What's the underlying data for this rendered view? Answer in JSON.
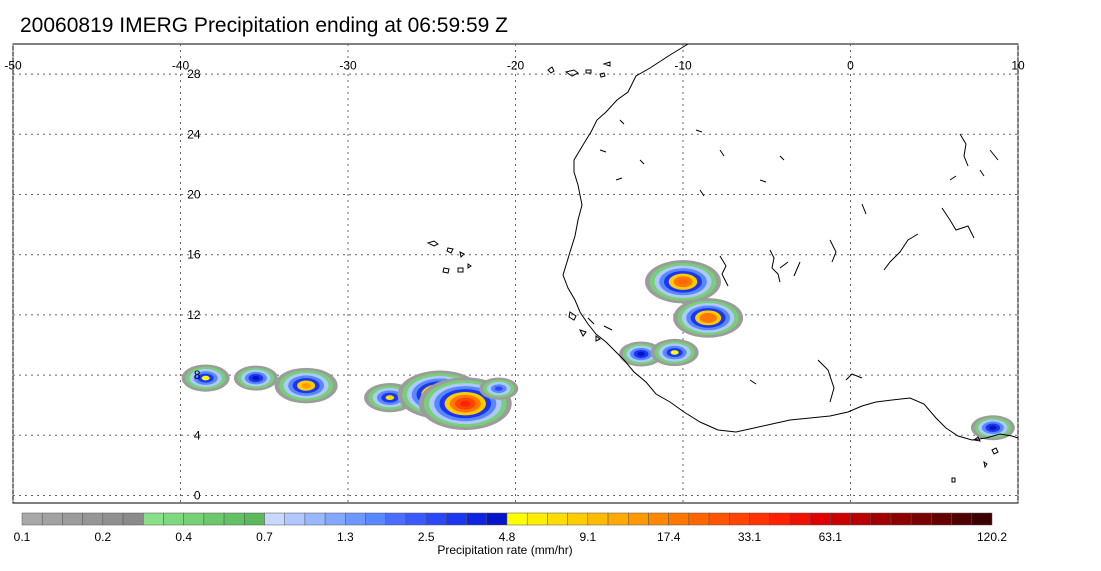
{
  "title": "20060819 IMERG Precipitation ending at 06:59:59 Z",
  "map": {
    "lon_range": [
      -50,
      10
    ],
    "lat_range": [
      -0.5,
      30
    ],
    "lon_ticks": [
      "-50",
      "-40",
      "-30",
      "-20",
      "-10",
      "0",
      "10"
    ],
    "lat_ticks": [
      "0",
      "4",
      "8",
      "12",
      "16",
      "20",
      "24",
      "28"
    ],
    "grid": true,
    "coastline_color": "#000000"
  },
  "colorbar": {
    "label": "Precipitation rate (mm/hr)",
    "tick_labels": [
      "0.1",
      "0.2",
      "0.4",
      "0.7",
      "1.3",
      "2.5",
      "4.8",
      "9.1",
      "17.4",
      "33.1",
      "63.1",
      "120.2"
    ],
    "colors": [
      "#a8a8a8",
      "#a2a2a2",
      "#9c9c9c",
      "#969696",
      "#909090",
      "#8a8a8a",
      "#88e088",
      "#7fd87f",
      "#76d076",
      "#6dc86d",
      "#64c064",
      "#5bb85b",
      "#c8d8ff",
      "#b0c8ff",
      "#9ab8ff",
      "#84a8ff",
      "#6e98ff",
      "#5888ff",
      "#4a6cff",
      "#3a5aff",
      "#2a48f8",
      "#1a36f0",
      "#0e24e0",
      "#0414c8",
      "#ffff00",
      "#ffee00",
      "#ffdd00",
      "#ffcc00",
      "#ffbb00",
      "#ffaa00",
      "#ff9900",
      "#ff8800",
      "#ff7700",
      "#ff6600",
      "#ff5500",
      "#ff4400",
      "#ff3300",
      "#ff2200",
      "#f01000",
      "#e00000",
      "#cc0000",
      "#b80000",
      "#a00000",
      "#8c0000",
      "#780000",
      "#640000",
      "#500000",
      "#3c0000"
    ]
  },
  "precip_cells": [
    {
      "lon": -35.5,
      "lat": 7.8,
      "rate": 3.0
    },
    {
      "lon": -32.5,
      "lat": 7.3,
      "rate": 9.0
    },
    {
      "lon": -27.5,
      "lat": 6.5,
      "rate": 5.0
    },
    {
      "lon": -24.5,
      "lat": 6.7,
      "rate": 20.0
    },
    {
      "lon": -23.0,
      "lat": 6.1,
      "rate": 25.0
    },
    {
      "lon": -38.5,
      "lat": 7.8,
      "rate": 4.0
    },
    {
      "lon": -10.0,
      "lat": 14.2,
      "rate": 15.0
    },
    {
      "lon": -8.5,
      "lat": 11.8,
      "rate": 12.0
    },
    {
      "lon": -12.5,
      "lat": 9.4,
      "rate": 3.0
    },
    {
      "lon": -10.5,
      "lat": 9.5,
      "rate": 4.0
    },
    {
      "lon": 8.5,
      "lat": 4.5,
      "rate": 3.0
    },
    {
      "lon": -21.0,
      "lat": 7.1,
      "rate": 2.0
    }
  ]
}
